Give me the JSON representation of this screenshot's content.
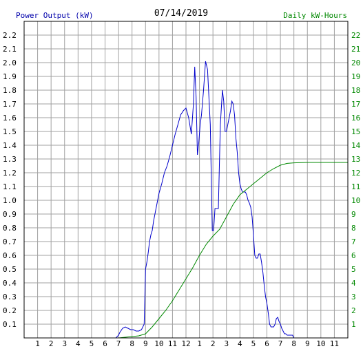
{
  "header": {
    "left_label": "Power Output (kW)",
    "date": "07/14/2019",
    "right_label": "Daily kW-Hours"
  },
  "colors": {
    "power": "#0000cc",
    "energy": "#008800",
    "grid": "#a0a0a0",
    "axis_text_left": "#000000",
    "axis_text_right": "#008800",
    "header_left": "#0000aa",
    "header_right": "#008800"
  },
  "chart_data": {
    "type": "line",
    "title": "07/14/2019",
    "xlabel": "",
    "ylabel": "Power Output (kW)",
    "y2label": "Daily kW-Hours",
    "xlim": [
      0,
      24
    ],
    "ylim": [
      0,
      2.3
    ],
    "y2lim": [
      0,
      23
    ],
    "x_ticks": [
      "1",
      "2",
      "3",
      "4",
      "5",
      "6",
      "7",
      "8",
      "9",
      "10",
      "11",
      "12",
      "1",
      "2",
      "3",
      "4",
      "5",
      "6",
      "7",
      "8",
      "9",
      "10",
      "11"
    ],
    "y_ticks": [
      "0.1",
      "0.2",
      "0.3",
      "0.4",
      "0.5",
      "0.6",
      "0.7",
      "0.8",
      "0.9",
      "1.0",
      "1.1",
      "1.2",
      "1.3",
      "1.4",
      "1.5",
      "1.6",
      "1.7",
      "1.8",
      "1.9",
      "2.0",
      "2.1",
      "2.2"
    ],
    "y2_ticks": [
      "1",
      "2",
      "3",
      "4",
      "5",
      "6",
      "7",
      "8",
      "9",
      "10",
      "11",
      "12",
      "13",
      "14",
      "15",
      "16",
      "17",
      "18",
      "19",
      "20",
      "21",
      "22"
    ],
    "grid": true,
    "series": [
      {
        "name": "Power Output (kW)",
        "axis": "left",
        "x": [
          6.8,
          7.0,
          7.1,
          7.3,
          7.5,
          7.7,
          7.9,
          8.1,
          8.3,
          8.5,
          8.7,
          8.9,
          9.0,
          9.1,
          9.2,
          9.3,
          9.4,
          9.5,
          9.6,
          9.8,
          10.0,
          10.2,
          10.4,
          10.6,
          10.8,
          11.0,
          11.2,
          11.4,
          11.6,
          11.8,
          12.0,
          12.2,
          12.4,
          12.55,
          12.65,
          12.75,
          12.85,
          12.95,
          13.05,
          13.15,
          13.3,
          13.45,
          13.6,
          13.8,
          13.95,
          14.05,
          14.15,
          14.25,
          14.4,
          14.55,
          14.7,
          14.8,
          14.9,
          15.0,
          15.1,
          15.2,
          15.3,
          15.4,
          15.5,
          15.6,
          15.7,
          15.8,
          15.9,
          16.0,
          16.1,
          16.2,
          16.3,
          16.4,
          16.5,
          16.6,
          16.7,
          16.8,
          16.9,
          17.0,
          17.1,
          17.2,
          17.3,
          17.4,
          17.5,
          17.6,
          17.7,
          17.8,
          17.9,
          18.0,
          18.1,
          18.2,
          18.3,
          18.4,
          18.5,
          18.6,
          18.7,
          18.8,
          18.9,
          19.0,
          19.1,
          19.2,
          19.3,
          19.4,
          19.5,
          19.6,
          19.7,
          19.8,
          19.9,
          20.0,
          20.2,
          20.4,
          20.6,
          20.8,
          21.0
        ],
        "y": [
          0.0,
          0.02,
          0.04,
          0.07,
          0.08,
          0.07,
          0.06,
          0.06,
          0.05,
          0.05,
          0.06,
          0.1,
          0.5,
          0.55,
          0.62,
          0.7,
          0.75,
          0.78,
          0.85,
          0.95,
          1.05,
          1.12,
          1.2,
          1.25,
          1.32,
          1.4,
          1.48,
          1.55,
          1.62,
          1.65,
          1.67,
          1.6,
          1.48,
          1.7,
          1.97,
          1.75,
          1.33,
          1.42,
          1.55,
          1.62,
          1.8,
          2.01,
          1.95,
          1.55,
          0.78,
          0.78,
          0.94,
          0.94,
          0.94,
          1.55,
          1.8,
          1.72,
          1.5,
          1.5,
          1.55,
          1.6,
          1.65,
          1.72,
          1.7,
          1.62,
          1.45,
          1.35,
          1.2,
          1.12,
          1.08,
          1.06,
          1.06,
          1.06,
          1.04,
          1.0,
          0.98,
          0.95,
          0.88,
          0.75,
          0.6,
          0.58,
          0.58,
          0.61,
          0.61,
          0.55,
          0.48,
          0.38,
          0.3,
          0.25,
          0.18,
          0.1,
          0.08,
          0.08,
          0.08,
          0.1,
          0.14,
          0.15,
          0.12,
          0.1,
          0.07,
          0.05,
          0.03,
          0.03,
          0.02,
          0.02,
          0.02,
          0.02,
          0.02,
          0.0,
          0.0,
          0.0,
          0.0,
          0.0,
          0.0
        ]
      },
      {
        "name": "Daily kW-Hours",
        "axis": "right",
        "x": [
          7.0,
          8.0,
          8.5,
          9.0,
          9.5,
          10.0,
          10.5,
          11.0,
          11.5,
          12.0,
          12.5,
          13.0,
          13.5,
          14.0,
          14.5,
          15.0,
          15.5,
          16.0,
          16.5,
          17.0,
          17.5,
          18.0,
          18.5,
          19.0,
          19.5,
          20.0,
          21.0,
          22.0,
          23.0,
          24.0
        ],
        "y": [
          0.0,
          0.1,
          0.15,
          0.3,
          0.8,
          1.4,
          2.0,
          2.7,
          3.5,
          4.3,
          5.1,
          6.0,
          6.8,
          7.4,
          7.9,
          8.8,
          9.7,
          10.4,
          10.8,
          11.2,
          11.6,
          12.0,
          12.3,
          12.55,
          12.68,
          12.72,
          12.75,
          12.75,
          12.75,
          12.75
        ]
      }
    ]
  }
}
